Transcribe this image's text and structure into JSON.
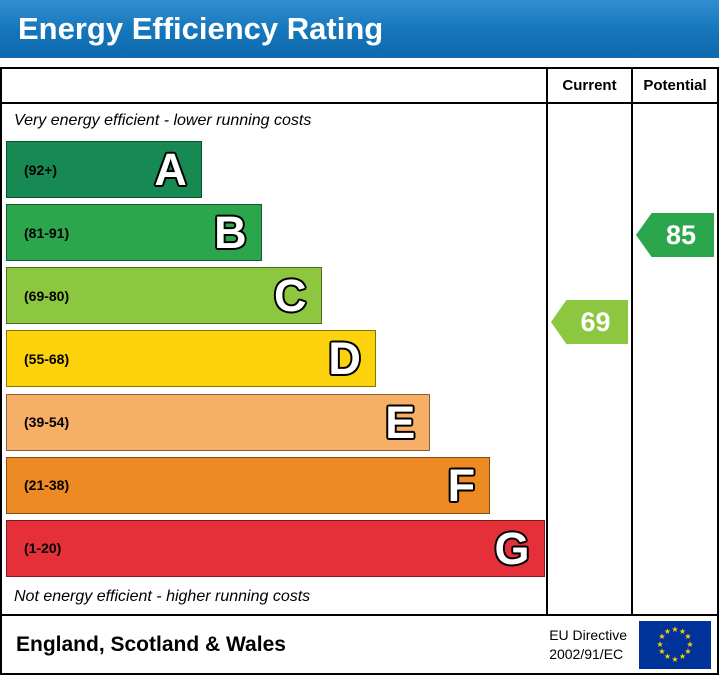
{
  "title": "Energy Efficiency Rating",
  "columns": {
    "current": "Current",
    "potential": "Potential"
  },
  "chart_data": {
    "type": "bar",
    "title": "Energy Efficiency Rating",
    "top_note": "Very energy efficient - lower running costs",
    "bottom_note": "Not energy efficient - higher running costs",
    "bands": [
      {
        "letter": "A",
        "range": "(92+)",
        "min": 92,
        "max": 100,
        "color": "#168a52",
        "width_pct": 36
      },
      {
        "letter": "B",
        "range": "(81-91)",
        "min": 81,
        "max": 91,
        "color": "#2ca64d",
        "width_pct": 47
      },
      {
        "letter": "C",
        "range": "(69-80)",
        "min": 69,
        "max": 80,
        "color": "#8dc63f",
        "width_pct": 58
      },
      {
        "letter": "D",
        "range": "(55-68)",
        "min": 55,
        "max": 68,
        "color": "#fcd20c",
        "width_pct": 68
      },
      {
        "letter": "E",
        "range": "(39-54)",
        "min": 39,
        "max": 54,
        "color": "#f7af67",
        "width_pct": 78
      },
      {
        "letter": "F",
        "range": "(21-38)",
        "min": 21,
        "max": 38,
        "color": "#ee8a24",
        "width_pct": 89
      },
      {
        "letter": "G",
        "range": "(1-20)",
        "min": 1,
        "max": 20,
        "color": "#e5303a",
        "width_pct": 99
      }
    ],
    "current": {
      "value": 69,
      "band": "C",
      "color": "#8dc63f"
    },
    "potential": {
      "value": 85,
      "band": "B",
      "color": "#2ca64d"
    }
  },
  "footer": {
    "region": "England, Scotland & Wales",
    "directive_line1": "EU Directive",
    "directive_line2": "2002/91/EC",
    "eu_flag": {
      "background": "#003399",
      "star_color": "#ffcc00",
      "stars": 12
    }
  }
}
